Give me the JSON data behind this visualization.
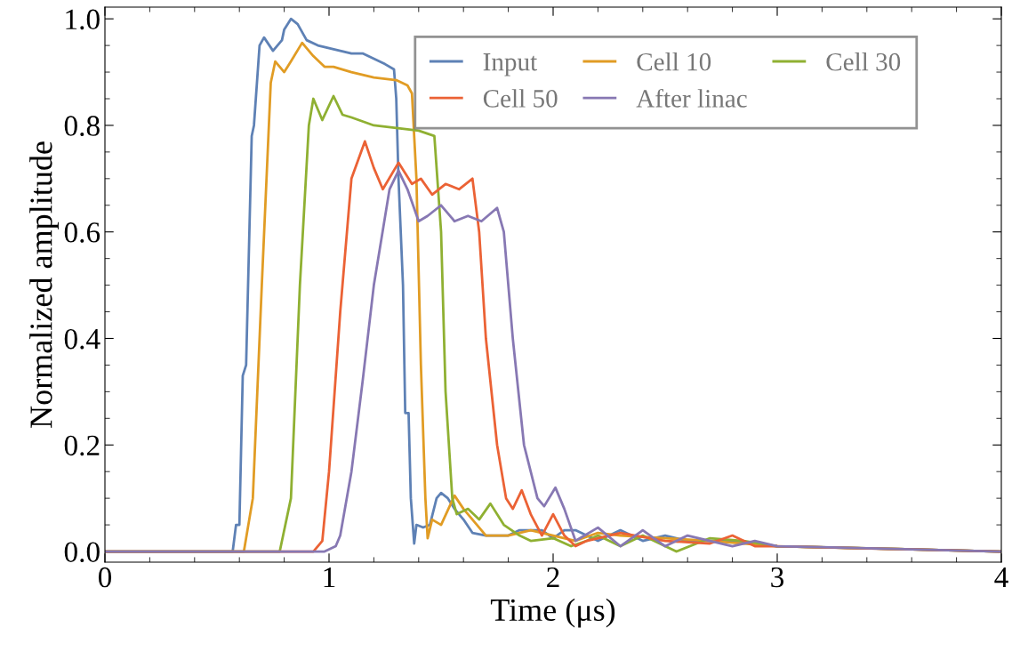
{
  "chart_data": {
    "type": "line",
    "xlabel": "Time (μs)",
    "ylabel": "Normalized amplitude",
    "xlim": [
      0,
      4
    ],
    "xticks": [
      0,
      1,
      2,
      3,
      4
    ],
    "ylim": [
      -0.02,
      1.022
    ],
    "yticks": [
      {
        "value": 0,
        "label": "0.0"
      },
      0.2,
      0.4,
      0.6,
      0.8,
      {
        "value": 1,
        "label": "1.0"
      }
    ],
    "grid": false,
    "legend": "top right",
    "marker": "none",
    "line_style": "solid",
    "series": [
      {
        "name": "Input",
        "color": "#5e81b5",
        "x": [
          0,
          0.57,
          0.585,
          0.6,
          0.615,
          0.63,
          0.655,
          0.665,
          0.69,
          0.71,
          0.75,
          0.79,
          0.8,
          0.83,
          0.86,
          0.9,
          0.95,
          1.0,
          1.05,
          1.1,
          1.15,
          1.2,
          1.25,
          1.29,
          1.3,
          1.31,
          1.33,
          1.34,
          1.355,
          1.365,
          1.38,
          1.39,
          1.42,
          1.45,
          1.48,
          1.5,
          1.53,
          1.56,
          1.6,
          1.64,
          1.7,
          1.8,
          1.85,
          1.95,
          2.0,
          2.05,
          2.1,
          2.2,
          2.3,
          2.4,
          2.5,
          2.6,
          2.8,
          3.0,
          3.5,
          4
        ],
        "values": [
          0,
          0,
          0.05,
          0.05,
          0.33,
          0.35,
          0.78,
          0.8,
          0.95,
          0.965,
          0.94,
          0.96,
          0.98,
          1.0,
          0.99,
          0.96,
          0.95,
          0.945,
          0.94,
          0.935,
          0.935,
          0.925,
          0.915,
          0.905,
          0.85,
          0.7,
          0.5,
          0.26,
          0.26,
          0.1,
          0.015,
          0.05,
          0.045,
          0.05,
          0.1,
          0.11,
          0.1,
          0.08,
          0.06,
          0.035,
          0.03,
          0.03,
          0.04,
          0.04,
          0.025,
          0.04,
          0.04,
          0.02,
          0.04,
          0.02,
          0.03,
          0.02,
          0.02,
          0.01,
          0.005,
          0
        ]
      },
      {
        "name": "Cell 10",
        "color": "#e19c24",
        "x": [
          0,
          0.62,
          0.66,
          0.7,
          0.74,
          0.76,
          0.8,
          0.83,
          0.88,
          0.93,
          0.98,
          1.02,
          1.1,
          1.2,
          1.3,
          1.35,
          1.37,
          1.39,
          1.41,
          1.43,
          1.44,
          1.46,
          1.5,
          1.56,
          1.6,
          1.65,
          1.7,
          1.8,
          1.9,
          2.0,
          2.1,
          2.2,
          2.3,
          2.5,
          2.7,
          3.0,
          4
        ],
        "values": [
          0,
          0,
          0.1,
          0.5,
          0.88,
          0.92,
          0.9,
          0.92,
          0.955,
          0.93,
          0.91,
          0.91,
          0.9,
          0.89,
          0.885,
          0.875,
          0.86,
          0.7,
          0.35,
          0.1,
          0.025,
          0.06,
          0.05,
          0.105,
          0.08,
          0.055,
          0.03,
          0.03,
          0.04,
          0.03,
          0.02,
          0.035,
          0.03,
          0.025,
          0.02,
          0.01,
          0
        ]
      },
      {
        "name": "Cell 30",
        "color": "#8fb032",
        "x": [
          0,
          0.78,
          0.83,
          0.87,
          0.91,
          0.93,
          0.97,
          1.02,
          1.06,
          1.1,
          1.2,
          1.3,
          1.4,
          1.47,
          1.5,
          1.52,
          1.55,
          1.57,
          1.62,
          1.67,
          1.72,
          1.78,
          1.85,
          1.9,
          2.0,
          2.08,
          2.15,
          2.2,
          2.3,
          2.4,
          2.55,
          2.7,
          2.85,
          3.0,
          4
        ],
        "values": [
          0,
          0,
          0.1,
          0.5,
          0.8,
          0.85,
          0.81,
          0.855,
          0.82,
          0.815,
          0.8,
          0.795,
          0.79,
          0.78,
          0.6,
          0.3,
          0.1,
          0.07,
          0.08,
          0.06,
          0.09,
          0.05,
          0.03,
          0.02,
          0.025,
          0.01,
          0.02,
          0.03,
          0.01,
          0.03,
          0.0,
          0.025,
          0.02,
          0.01,
          0
        ]
      },
      {
        "name": "Cell 50",
        "color": "#eb6235",
        "x": [
          0,
          0.93,
          0.97,
          1.0,
          1.05,
          1.1,
          1.16,
          1.2,
          1.24,
          1.31,
          1.37,
          1.41,
          1.46,
          1.52,
          1.58,
          1.64,
          1.67,
          1.7,
          1.75,
          1.79,
          1.82,
          1.86,
          1.9,
          1.95,
          2.0,
          2.05,
          2.1,
          2.15,
          2.3,
          2.5,
          2.7,
          2.8,
          2.9,
          3.0,
          3.5,
          4
        ],
        "values": [
          0,
          0,
          0.02,
          0.15,
          0.45,
          0.7,
          0.77,
          0.72,
          0.68,
          0.73,
          0.69,
          0.7,
          0.67,
          0.69,
          0.68,
          0.7,
          0.6,
          0.4,
          0.2,
          0.1,
          0.08,
          0.115,
          0.07,
          0.03,
          0.07,
          0.03,
          0.01,
          0.02,
          0.035,
          0.02,
          0.015,
          0.03,
          0.01,
          0.01,
          0.005,
          0
        ]
      },
      {
        "name": "After linac",
        "color": "#8778b3",
        "x": [
          0,
          0.98,
          1.03,
          1.05,
          1.1,
          1.15,
          1.2,
          1.27,
          1.31,
          1.35,
          1.4,
          1.44,
          1.5,
          1.56,
          1.62,
          1.68,
          1.75,
          1.78,
          1.82,
          1.87,
          1.93,
          1.96,
          2.01,
          2.05,
          2.1,
          2.2,
          2.3,
          2.4,
          2.5,
          2.6,
          2.8,
          2.9,
          3.0,
          3.2,
          4
        ],
        "values": [
          0,
          0,
          0.01,
          0.03,
          0.15,
          0.32,
          0.5,
          0.68,
          0.715,
          0.68,
          0.62,
          0.63,
          0.65,
          0.62,
          0.63,
          0.62,
          0.645,
          0.6,
          0.4,
          0.2,
          0.1,
          0.085,
          0.12,
          0.08,
          0.02,
          0.045,
          0.01,
          0.04,
          0.01,
          0.03,
          0.01,
          0.02,
          0.01,
          0.008,
          0
        ]
      }
    ]
  }
}
